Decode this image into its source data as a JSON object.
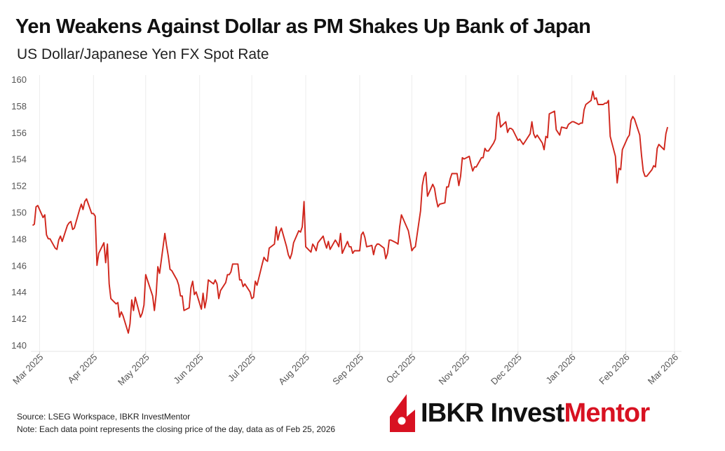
{
  "header": {
    "title": "Yen Weakens Against Dollar as PM Shakes Up Bank of Japan",
    "subtitle": "US Dollar/Japanese Yen FX Spot Rate"
  },
  "footer": {
    "source": "Source: LSEG Workspace, IBKR InvestMentor",
    "note": "Note: Each data point represents the closing price of the day, data as of Feb 25, 2026"
  },
  "logo": {
    "text_primary": "IBKR Invest",
    "text_accent": "Mentor",
    "accent_color": "#d81222"
  },
  "chart_data": {
    "type": "line",
    "line_color": "#d0261c",
    "grid": "vertical",
    "ylim": [
      140,
      160
    ],
    "yticks": [
      140,
      142,
      144,
      146,
      148,
      150,
      152,
      154,
      156,
      158,
      160
    ],
    "xlim": [
      "2025-02-24",
      "2026-03-05"
    ],
    "xticks": [
      {
        "date": "2025-03-01",
        "label": "Mar 2025"
      },
      {
        "date": "2025-04-01",
        "label": "Apr 2025"
      },
      {
        "date": "2025-05-01",
        "label": "May 2025"
      },
      {
        "date": "2025-06-01",
        "label": "Jun 2025"
      },
      {
        "date": "2025-07-01",
        "label": "Jul 2025"
      },
      {
        "date": "2025-08-01",
        "label": "Aug 2025"
      },
      {
        "date": "2025-09-01",
        "label": "Sep 2025"
      },
      {
        "date": "2025-10-01",
        "label": "Oct 2025"
      },
      {
        "date": "2025-11-01",
        "label": "Nov 2025"
      },
      {
        "date": "2025-12-01",
        "label": "Dec 2025"
      },
      {
        "date": "2026-01-01",
        "label": "Jan 2026"
      },
      {
        "date": "2026-02-01",
        "label": "Feb 2026"
      },
      {
        "date": "2026-03-01",
        "label": "Mar 2026"
      }
    ],
    "xlabel": "",
    "ylabel": "",
    "series": [
      {
        "values": [
          [
            "2025-02-25",
            149.0
          ],
          [
            "2025-02-26",
            149.1
          ],
          [
            "2025-02-27",
            150.4
          ],
          [
            "2025-02-28",
            150.5
          ],
          [
            "2025-03-03",
            149.6
          ],
          [
            "2025-03-04",
            149.8
          ],
          [
            "2025-03-05",
            148.3
          ],
          [
            "2025-03-06",
            148.0
          ],
          [
            "2025-03-07",
            148.0
          ],
          [
            "2025-03-10",
            147.3
          ],
          [
            "2025-03-11",
            147.2
          ],
          [
            "2025-03-12",
            147.9
          ],
          [
            "2025-03-13",
            148.2
          ],
          [
            "2025-03-14",
            147.8
          ],
          [
            "2025-03-17",
            149.0
          ],
          [
            "2025-03-18",
            149.2
          ],
          [
            "2025-03-19",
            149.3
          ],
          [
            "2025-03-20",
            148.7
          ],
          [
            "2025-03-21",
            148.8
          ],
          [
            "2025-03-24",
            150.2
          ],
          [
            "2025-03-25",
            150.6
          ],
          [
            "2025-03-26",
            150.2
          ],
          [
            "2025-03-27",
            150.8
          ],
          [
            "2025-03-28",
            151.0
          ],
          [
            "2025-03-31",
            149.9
          ],
          [
            "2025-04-01",
            149.9
          ],
          [
            "2025-04-02",
            149.7
          ],
          [
            "2025-04-03",
            146.0
          ],
          [
            "2025-04-04",
            146.9
          ],
          [
            "2025-04-07",
            147.7
          ],
          [
            "2025-04-08",
            146.2
          ],
          [
            "2025-04-09",
            147.6
          ],
          [
            "2025-04-10",
            144.6
          ],
          [
            "2025-04-11",
            143.5
          ],
          [
            "2025-04-14",
            143.1
          ],
          [
            "2025-04-15",
            143.2
          ],
          [
            "2025-04-16",
            142.1
          ],
          [
            "2025-04-17",
            142.5
          ],
          [
            "2025-04-18",
            142.2
          ],
          [
            "2025-04-21",
            140.9
          ],
          [
            "2025-04-22",
            141.6
          ],
          [
            "2025-04-23",
            143.4
          ],
          [
            "2025-04-24",
            142.6
          ],
          [
            "2025-04-25",
            143.6
          ],
          [
            "2025-04-28",
            142.1
          ],
          [
            "2025-04-29",
            142.4
          ],
          [
            "2025-04-30",
            143.0
          ],
          [
            "2025-05-01",
            145.3
          ],
          [
            "2025-05-02",
            144.9
          ],
          [
            "2025-05-05",
            143.7
          ],
          [
            "2025-05-06",
            142.6
          ],
          [
            "2025-05-07",
            143.8
          ],
          [
            "2025-05-08",
            145.9
          ],
          [
            "2025-05-09",
            145.4
          ],
          [
            "2025-05-12",
            148.4
          ],
          [
            "2025-05-13",
            147.5
          ],
          [
            "2025-05-14",
            146.7
          ],
          [
            "2025-05-15",
            145.7
          ],
          [
            "2025-05-16",
            145.6
          ],
          [
            "2025-05-19",
            144.9
          ],
          [
            "2025-05-20",
            144.5
          ],
          [
            "2025-05-21",
            143.7
          ],
          [
            "2025-05-22",
            143.7
          ],
          [
            "2025-05-23",
            142.6
          ],
          [
            "2025-05-26",
            142.8
          ],
          [
            "2025-05-27",
            144.3
          ],
          [
            "2025-05-28",
            144.8
          ],
          [
            "2025-05-29",
            143.8
          ],
          [
            "2025-05-30",
            144.0
          ],
          [
            "2025-06-02",
            142.7
          ],
          [
            "2025-06-03",
            143.9
          ],
          [
            "2025-06-04",
            142.8
          ],
          [
            "2025-06-05",
            143.5
          ],
          [
            "2025-06-06",
            144.9
          ],
          [
            "2025-06-09",
            144.6
          ],
          [
            "2025-06-10",
            144.9
          ],
          [
            "2025-06-11",
            144.6
          ],
          [
            "2025-06-12",
            143.5
          ],
          [
            "2025-06-13",
            144.1
          ],
          [
            "2025-06-16",
            144.7
          ],
          [
            "2025-06-17",
            145.3
          ],
          [
            "2025-06-18",
            145.3
          ],
          [
            "2025-06-19",
            145.5
          ],
          [
            "2025-06-20",
            146.1
          ],
          [
            "2025-06-23",
            146.1
          ],
          [
            "2025-06-24",
            144.9
          ],
          [
            "2025-06-25",
            144.9
          ],
          [
            "2025-06-26",
            144.4
          ],
          [
            "2025-06-27",
            144.6
          ],
          [
            "2025-06-30",
            144.0
          ],
          [
            "2025-07-01",
            143.5
          ],
          [
            "2025-07-02",
            143.6
          ],
          [
            "2025-07-03",
            144.8
          ],
          [
            "2025-07-04",
            144.5
          ],
          [
            "2025-07-07",
            146.1
          ],
          [
            "2025-07-08",
            146.6
          ],
          [
            "2025-07-09",
            146.4
          ],
          [
            "2025-07-10",
            146.3
          ],
          [
            "2025-07-11",
            147.3
          ],
          [
            "2025-07-14",
            147.6
          ],
          [
            "2025-07-15",
            148.9
          ],
          [
            "2025-07-16",
            147.9
          ],
          [
            "2025-07-17",
            148.5
          ],
          [
            "2025-07-18",
            148.8
          ],
          [
            "2025-07-21",
            147.4
          ],
          [
            "2025-07-22",
            146.8
          ],
          [
            "2025-07-23",
            146.5
          ],
          [
            "2025-07-24",
            146.9
          ],
          [
            "2025-07-25",
            147.7
          ],
          [
            "2025-07-28",
            148.6
          ],
          [
            "2025-07-29",
            148.5
          ],
          [
            "2025-07-30",
            148.9
          ],
          [
            "2025-07-31",
            150.8
          ],
          [
            "2025-08-01",
            147.4
          ],
          [
            "2025-08-04",
            147.0
          ],
          [
            "2025-08-05",
            147.6
          ],
          [
            "2025-08-06",
            147.4
          ],
          [
            "2025-08-07",
            147.1
          ],
          [
            "2025-08-08",
            147.7
          ],
          [
            "2025-08-11",
            148.2
          ],
          [
            "2025-08-12",
            147.7
          ],
          [
            "2025-08-13",
            147.3
          ],
          [
            "2025-08-14",
            147.8
          ],
          [
            "2025-08-15",
            147.2
          ],
          [
            "2025-08-18",
            147.9
          ],
          [
            "2025-08-19",
            147.7
          ],
          [
            "2025-08-20",
            147.4
          ],
          [
            "2025-08-21",
            148.4
          ],
          [
            "2025-08-22",
            146.9
          ],
          [
            "2025-08-25",
            147.8
          ],
          [
            "2025-08-26",
            147.4
          ],
          [
            "2025-08-27",
            147.4
          ],
          [
            "2025-08-28",
            146.9
          ],
          [
            "2025-08-29",
            147.1
          ],
          [
            "2025-09-01",
            147.1
          ],
          [
            "2025-09-02",
            148.3
          ],
          [
            "2025-09-03",
            148.5
          ],
          [
            "2025-09-04",
            148.1
          ],
          [
            "2025-09-05",
            147.4
          ],
          [
            "2025-09-08",
            147.5
          ],
          [
            "2025-09-09",
            146.8
          ],
          [
            "2025-09-10",
            147.4
          ],
          [
            "2025-09-11",
            147.6
          ],
          [
            "2025-09-12",
            147.6
          ],
          [
            "2025-09-15",
            147.3
          ],
          [
            "2025-09-16",
            146.5
          ],
          [
            "2025-09-17",
            146.9
          ],
          [
            "2025-09-18",
            147.9
          ],
          [
            "2025-09-19",
            147.9
          ],
          [
            "2025-09-22",
            147.7
          ],
          [
            "2025-09-23",
            147.6
          ],
          [
            "2025-09-24",
            148.9
          ],
          [
            "2025-09-25",
            149.8
          ],
          [
            "2025-09-26",
            149.5
          ],
          [
            "2025-09-29",
            148.6
          ],
          [
            "2025-09-30",
            147.9
          ],
          [
            "2025-10-01",
            147.1
          ],
          [
            "2025-10-02",
            147.3
          ],
          [
            "2025-10-03",
            147.4
          ],
          [
            "2025-10-06",
            150.1
          ],
          [
            "2025-10-07",
            152.0
          ],
          [
            "2025-10-08",
            152.7
          ],
          [
            "2025-10-09",
            153.0
          ],
          [
            "2025-10-10",
            151.2
          ],
          [
            "2025-10-13",
            152.1
          ],
          [
            "2025-10-14",
            151.8
          ],
          [
            "2025-10-15",
            151.0
          ],
          [
            "2025-10-16",
            150.4
          ],
          [
            "2025-10-17",
            150.6
          ],
          [
            "2025-10-20",
            150.7
          ],
          [
            "2025-10-21",
            151.9
          ],
          [
            "2025-10-22",
            151.9
          ],
          [
            "2025-10-23",
            152.5
          ],
          [
            "2025-10-24",
            152.9
          ],
          [
            "2025-10-27",
            152.9
          ],
          [
            "2025-10-28",
            152.0
          ],
          [
            "2025-10-29",
            152.7
          ],
          [
            "2025-10-30",
            154.1
          ],
          [
            "2025-10-31",
            154.0
          ],
          [
            "2025-11-03",
            154.2
          ],
          [
            "2025-11-04",
            153.6
          ],
          [
            "2025-11-05",
            153.1
          ],
          [
            "2025-11-06",
            153.4
          ],
          [
            "2025-11-07",
            153.4
          ],
          [
            "2025-11-10",
            154.1
          ],
          [
            "2025-11-11",
            154.1
          ],
          [
            "2025-11-12",
            154.8
          ],
          [
            "2025-11-13",
            154.6
          ],
          [
            "2025-11-14",
            154.6
          ],
          [
            "2025-11-17",
            155.2
          ],
          [
            "2025-11-18",
            155.5
          ],
          [
            "2025-11-19",
            157.2
          ],
          [
            "2025-11-20",
            157.5
          ],
          [
            "2025-11-21",
            156.4
          ],
          [
            "2025-11-24",
            156.8
          ],
          [
            "2025-11-25",
            156.0
          ],
          [
            "2025-11-26",
            156.3
          ],
          [
            "2025-11-27",
            156.3
          ],
          [
            "2025-11-28",
            156.2
          ],
          [
            "2025-12-01",
            155.4
          ],
          [
            "2025-12-02",
            155.5
          ],
          [
            "2025-12-03",
            155.3
          ],
          [
            "2025-12-04",
            155.1
          ],
          [
            "2025-12-05",
            155.3
          ],
          [
            "2025-12-08",
            155.9
          ],
          [
            "2025-12-09",
            156.8
          ],
          [
            "2025-12-10",
            155.9
          ],
          [
            "2025-12-11",
            155.6
          ],
          [
            "2025-12-12",
            155.8
          ],
          [
            "2025-12-15",
            155.2
          ],
          [
            "2025-12-16",
            154.7
          ],
          [
            "2025-12-17",
            155.7
          ],
          [
            "2025-12-18",
            155.6
          ],
          [
            "2025-12-19",
            157.4
          ],
          [
            "2025-12-22",
            157.6
          ],
          [
            "2025-12-23",
            156.2
          ],
          [
            "2025-12-24",
            156.0
          ],
          [
            "2025-12-25",
            155.8
          ],
          [
            "2025-12-26",
            156.4
          ],
          [
            "2025-12-29",
            156.3
          ],
          [
            "2025-12-30",
            156.6
          ],
          [
            "2025-12-31",
            156.7
          ],
          [
            "2026-01-01",
            156.8
          ],
          [
            "2026-01-02",
            156.8
          ],
          [
            "2026-01-05",
            156.6
          ],
          [
            "2026-01-06",
            156.7
          ],
          [
            "2026-01-07",
            156.7
          ],
          [
            "2026-01-08",
            157.7
          ],
          [
            "2026-01-09",
            158.1
          ],
          [
            "2026-01-12",
            158.4
          ],
          [
            "2026-01-13",
            159.1
          ],
          [
            "2026-01-14",
            158.5
          ],
          [
            "2026-01-15",
            158.6
          ],
          [
            "2026-01-16",
            158.1
          ],
          [
            "2026-01-19",
            158.1
          ],
          [
            "2026-01-20",
            158.2
          ],
          [
            "2026-01-21",
            158.2
          ],
          [
            "2026-01-22",
            158.4
          ],
          [
            "2026-01-23",
            155.7
          ],
          [
            "2026-01-26",
            154.2
          ],
          [
            "2026-01-27",
            152.2
          ],
          [
            "2026-01-28",
            153.3
          ],
          [
            "2026-01-29",
            153.2
          ],
          [
            "2026-01-30",
            154.7
          ],
          [
            "2026-02-02",
            155.6
          ],
          [
            "2026-02-03",
            155.8
          ],
          [
            "2026-02-04",
            156.9
          ],
          [
            "2026-02-05",
            157.2
          ],
          [
            "2026-02-06",
            157.0
          ],
          [
            "2026-02-09",
            155.8
          ],
          [
            "2026-02-10",
            154.3
          ],
          [
            "2026-02-11",
            153.1
          ],
          [
            "2026-02-12",
            152.7
          ],
          [
            "2026-02-13",
            152.7
          ],
          [
            "2026-02-16",
            153.2
          ],
          [
            "2026-02-17",
            153.5
          ],
          [
            "2026-02-18",
            153.4
          ],
          [
            "2026-02-19",
            154.8
          ],
          [
            "2026-02-20",
            155.1
          ],
          [
            "2026-02-23",
            154.7
          ],
          [
            "2026-02-24",
            155.9
          ],
          [
            "2026-02-25",
            156.4
          ]
        ]
      }
    ]
  }
}
